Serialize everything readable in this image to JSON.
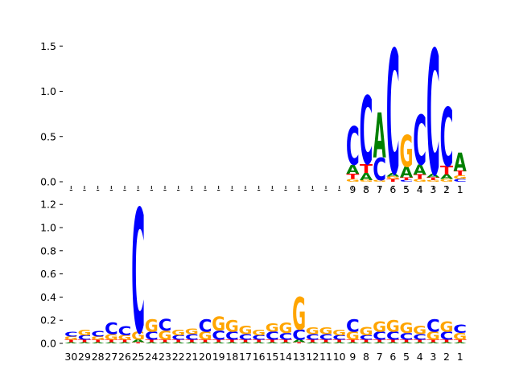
{
  "chart_data": [
    {
      "type": "logo",
      "ylim": [
        0,
        1.6
      ],
      "yticks": [
        "0.0",
        "0.5",
        "1.0",
        "1.5"
      ],
      "positions": [
        "-",
        "-",
        "-",
        "-",
        "-",
        "-",
        "-",
        "-",
        "-",
        "-",
        "-",
        "-",
        "-",
        "-",
        "-",
        "-",
        "-",
        "-",
        "-",
        "-",
        "-",
        "9",
        "8",
        "7",
        "6",
        "5",
        "4",
        "3",
        "2",
        "1"
      ],
      "colors": {
        "A": "#008000",
        "C": "#0000ff",
        "G": "#ffa500",
        "T": "#ff0000"
      },
      "stacks": [
        [],
        [],
        [],
        [],
        [],
        [],
        [],
        [],
        [],
        [],
        [],
        [],
        [],
        [],
        [],
        [],
        [],
        [],
        [],
        [],
        [],
        [
          [
            "G",
            0.03
          ],
          [
            "T",
            0.06
          ],
          [
            "A",
            0.1
          ],
          [
            "C",
            0.42
          ]
        ],
        [
          [
            "G",
            0.02
          ],
          [
            "A",
            0.08
          ],
          [
            "T",
            0.1
          ],
          [
            "C",
            0.75
          ]
        ],
        [
          [
            "G",
            0.02
          ],
          [
            "C",
            0.25
          ],
          [
            "A",
            0.5
          ]
        ],
        [
          [
            "T",
            0.03
          ],
          [
            "G",
            0.03
          ],
          [
            "A",
            0.04
          ],
          [
            "C",
            1.37
          ]
        ],
        [
          [
            "C",
            0.02
          ],
          [
            "T",
            0.03
          ],
          [
            "A",
            0.12
          ],
          [
            "G",
            0.35
          ]
        ],
        [
          [
            "G",
            0.03
          ],
          [
            "T",
            0.05
          ],
          [
            "A",
            0.11
          ],
          [
            "C",
            0.55
          ]
        ],
        [
          [
            "G",
            0.02
          ],
          [
            "T",
            0.03
          ],
          [
            "A",
            0.04
          ],
          [
            "C",
            1.38
          ]
        ],
        [
          [
            "G",
            0.03
          ],
          [
            "A",
            0.05
          ],
          [
            "T",
            0.1
          ],
          [
            "C",
            0.65
          ]
        ],
        [
          [
            "C",
            0.03
          ],
          [
            "G",
            0.04
          ],
          [
            "T",
            0.05
          ],
          [
            "A",
            0.2
          ]
        ]
      ]
    },
    {
      "type": "logo",
      "ylim": [
        0,
        1.25
      ],
      "yticks": [
        "0.0",
        "0.2",
        "0.4",
        "0.6",
        "0.8",
        "1.0",
        "1.2"
      ],
      "positions": [
        "30",
        "29",
        "28",
        "27",
        "26",
        "25",
        "24",
        "23",
        "22",
        "21",
        "20",
        "19",
        "18",
        "17",
        "16",
        "15",
        "14",
        "13",
        "12",
        "11",
        "10",
        "9",
        "8",
        "7",
        "6",
        "5",
        "4",
        "3",
        "2",
        "1"
      ],
      "colors": {
        "A": "#008000",
        "C": "#0000ff",
        "G": "#ffa500",
        "T": "#ff0000"
      },
      "stacks": [
        [
          [
            "A",
            0.01
          ],
          [
            "T",
            0.02
          ],
          [
            "G",
            0.03
          ],
          [
            "C",
            0.04
          ]
        ],
        [
          [
            "A",
            0.01
          ],
          [
            "T",
            0.02
          ],
          [
            "C",
            0.04
          ],
          [
            "G",
            0.05
          ]
        ],
        [
          [
            "A",
            0.01
          ],
          [
            "T",
            0.02
          ],
          [
            "G",
            0.03
          ],
          [
            "C",
            0.05
          ]
        ],
        [
          [
            "A",
            0.01
          ],
          [
            "T",
            0.02
          ],
          [
            "G",
            0.05
          ],
          [
            "C",
            0.1
          ]
        ],
        [
          [
            "A",
            0.01
          ],
          [
            "T",
            0.02
          ],
          [
            "G",
            0.04
          ],
          [
            "C",
            0.08
          ]
        ],
        [
          [
            "T",
            0.01
          ],
          [
            "A",
            0.02
          ],
          [
            "G",
            0.07
          ],
          [
            "C",
            1.07
          ]
        ],
        [
          [
            "A",
            0.01
          ],
          [
            "T",
            0.02
          ],
          [
            "C",
            0.07
          ],
          [
            "G",
            0.11
          ]
        ],
        [
          [
            "A",
            0.01
          ],
          [
            "T",
            0.02
          ],
          [
            "G",
            0.08
          ],
          [
            "C",
            0.1
          ]
        ],
        [
          [
            "A",
            0.01
          ],
          [
            "T",
            0.02
          ],
          [
            "C",
            0.04
          ],
          [
            "G",
            0.05
          ]
        ],
        [
          [
            "A",
            0.01
          ],
          [
            "T",
            0.02
          ],
          [
            "C",
            0.05
          ],
          [
            "G",
            0.05
          ]
        ],
        [
          [
            "A",
            0.01
          ],
          [
            "T",
            0.02
          ],
          [
            "G",
            0.07
          ],
          [
            "C",
            0.11
          ]
        ],
        [
          [
            "A",
            0.01
          ],
          [
            "T",
            0.02
          ],
          [
            "C",
            0.08
          ],
          [
            "G",
            0.12
          ]
        ],
        [
          [
            "A",
            0.01
          ],
          [
            "T",
            0.02
          ],
          [
            "C",
            0.07
          ],
          [
            "G",
            0.1
          ]
        ],
        [
          [
            "A",
            0.01
          ],
          [
            "T",
            0.02
          ],
          [
            "C",
            0.05
          ],
          [
            "G",
            0.07
          ]
        ],
        [
          [
            "A",
            0.01
          ],
          [
            "T",
            0.02
          ],
          [
            "C",
            0.04
          ],
          [
            "G",
            0.05
          ]
        ],
        [
          [
            "A",
            0.01
          ],
          [
            "T",
            0.02
          ],
          [
            "C",
            0.07
          ],
          [
            "G",
            0.07
          ]
        ],
        [
          [
            "A",
            0.01
          ],
          [
            "T",
            0.02
          ],
          [
            "C",
            0.06
          ],
          [
            "G",
            0.09
          ]
        ],
        [
          [
            "T",
            0.01
          ],
          [
            "A",
            0.02
          ],
          [
            "C",
            0.09
          ],
          [
            "G",
            0.28
          ]
        ],
        [
          [
            "A",
            0.01
          ],
          [
            "T",
            0.02
          ],
          [
            "C",
            0.05
          ],
          [
            "G",
            0.06
          ]
        ],
        [
          [
            "A",
            0.01
          ],
          [
            "T",
            0.02
          ],
          [
            "C",
            0.05
          ],
          [
            "G",
            0.06
          ]
        ],
        [
          [
            "A",
            0.01
          ],
          [
            "T",
            0.02
          ],
          [
            "C",
            0.04
          ],
          [
            "G",
            0.05
          ]
        ],
        [
          [
            "A",
            0.01
          ],
          [
            "T",
            0.02
          ],
          [
            "G",
            0.07
          ],
          [
            "C",
            0.11
          ]
        ],
        [
          [
            "A",
            0.01
          ],
          [
            "T",
            0.02
          ],
          [
            "C",
            0.04
          ],
          [
            "G",
            0.07
          ]
        ],
        [
          [
            "A",
            0.01
          ],
          [
            "T",
            0.02
          ],
          [
            "C",
            0.07
          ],
          [
            "G",
            0.09
          ]
        ],
        [
          [
            "A",
            0.01
          ],
          [
            "T",
            0.02
          ],
          [
            "C",
            0.07
          ],
          [
            "G",
            0.1
          ]
        ],
        [
          [
            "A",
            0.01
          ],
          [
            "T",
            0.02
          ],
          [
            "C",
            0.06
          ],
          [
            "G",
            0.09
          ]
        ],
        [
          [
            "A",
            0.01
          ],
          [
            "T",
            0.02
          ],
          [
            "C",
            0.05
          ],
          [
            "G",
            0.07
          ]
        ],
        [
          [
            "A",
            0.01
          ],
          [
            "T",
            0.02
          ],
          [
            "G",
            0.07
          ],
          [
            "C",
            0.11
          ]
        ],
        [
          [
            "A",
            0.01
          ],
          [
            "T",
            0.02
          ],
          [
            "C",
            0.07
          ],
          [
            "G",
            0.09
          ]
        ],
        [
          [
            "A",
            0.01
          ],
          [
            "T",
            0.02
          ],
          [
            "G",
            0.06
          ],
          [
            "C",
            0.07
          ]
        ]
      ]
    }
  ]
}
